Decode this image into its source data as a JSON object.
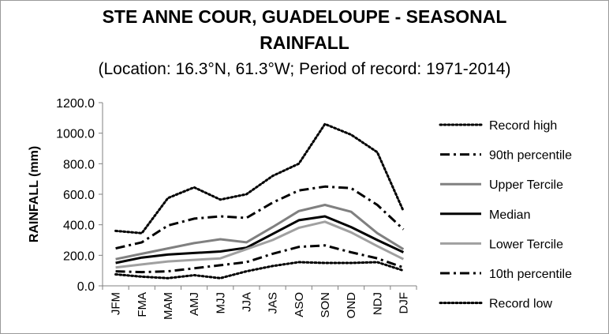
{
  "chart_data": {
    "type": "line",
    "title_line1": "STE ANNE COUR, GUADELOUPE - SEASONAL",
    "title_line2": "RAINFALL",
    "subtitle": "(Location: 16.3°N, 61.3°W; Period of record: 1971-2014)",
    "ylabel": "RAINFALL (mm)",
    "xlabel": "",
    "ylim": [
      0,
      1200
    ],
    "yticks": [
      "0.0",
      "200.0",
      "400.0",
      "600.0",
      "800.0",
      "1000.0",
      "1200.0"
    ],
    "categories": [
      "JFM",
      "FMA",
      "MAM",
      "AMJ",
      "MJJ",
      "JJA",
      "JAS",
      "ASO",
      "SON",
      "OND",
      "NDJ",
      "DJF"
    ],
    "legend_position": "right",
    "series": [
      {
        "name": "Record high",
        "color": "#000000",
        "dash": "dotted",
        "values": [
          360,
          345,
          575,
          645,
          565,
          600,
          720,
          800,
          1060,
          990,
          875,
          490
        ]
      },
      {
        "name": "90th percentile",
        "color": "#000000",
        "dash": "dashdot",
        "values": [
          245,
          285,
          395,
          440,
          455,
          445,
          545,
          625,
          650,
          640,
          530,
          370
        ]
      },
      {
        "name": "Upper Tercile",
        "color": "#808080",
        "dash": "solid",
        "values": [
          175,
          210,
          245,
          280,
          305,
          285,
          385,
          490,
          530,
          485,
          345,
          240
        ]
      },
      {
        "name": "Median",
        "color": "#000000",
        "dash": "solid",
        "values": [
          150,
          185,
          205,
          215,
          225,
          250,
          340,
          430,
          455,
          385,
          300,
          220
        ]
      },
      {
        "name": "Lower Tercile",
        "color": "#a0a0a0",
        "dash": "solid",
        "values": [
          120,
          140,
          160,
          170,
          180,
          240,
          300,
          380,
          420,
          350,
          260,
          175
        ]
      },
      {
        "name": "10th percentile",
        "color": "#000000",
        "dash": "dashdot",
        "values": [
          95,
          90,
          95,
          115,
          135,
          155,
          210,
          255,
          265,
          220,
          180,
          120
        ]
      },
      {
        "name": "Record low",
        "color": "#000000",
        "dash": "dotted",
        "values": [
          75,
          60,
          50,
          70,
          50,
          95,
          130,
          155,
          150,
          150,
          155,
          100
        ]
      }
    ]
  }
}
